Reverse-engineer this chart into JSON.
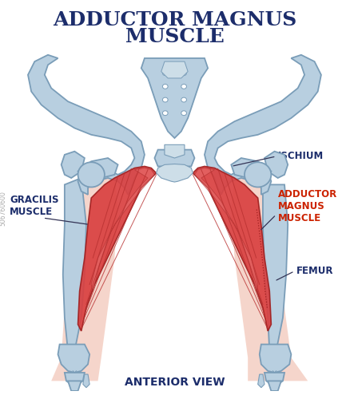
{
  "title_line1": "ADDUCTOR MAGNUS",
  "title_line2": "MUSCLE",
  "title_color": "#1c2d6b",
  "title_fontsize": 18,
  "title_weight": "bold",
  "subtitle": "ANTERIOR VIEW",
  "subtitle_color": "#1c2d6b",
  "subtitle_fontsize": 10,
  "background_color": "#ffffff",
  "skin_color": "#f2c4b5",
  "skin_alpha": 0.6,
  "bone_fill_color": "#b8cfe0",
  "bone_fill_light": "#cddee8",
  "bone_outline_color": "#7a9db8",
  "bone_lw": 1.3,
  "muscle_fill_color": "#d94040",
  "muscle_fill_light": "#e87070",
  "muscle_outline_color": "#a02020",
  "muscle_line_color": "#b83030",
  "label_gracilis": "GRACILIS\nMUSCLE",
  "label_ischium": "ISCHIUM",
  "label_adductor": "ADDUCTOR\nMAGNUS\nMUSCLE",
  "label_femur": "FEMUR",
  "label_color_dark": "#1c2d6b",
  "label_color_red": "#cc2200",
  "label_fontsize": 8.5,
  "label_fontweight": "bold",
  "line_color": "#333355",
  "watermark": "506760600",
  "fig_width": 4.38,
  "fig_height": 5.0,
  "dpi": 100
}
